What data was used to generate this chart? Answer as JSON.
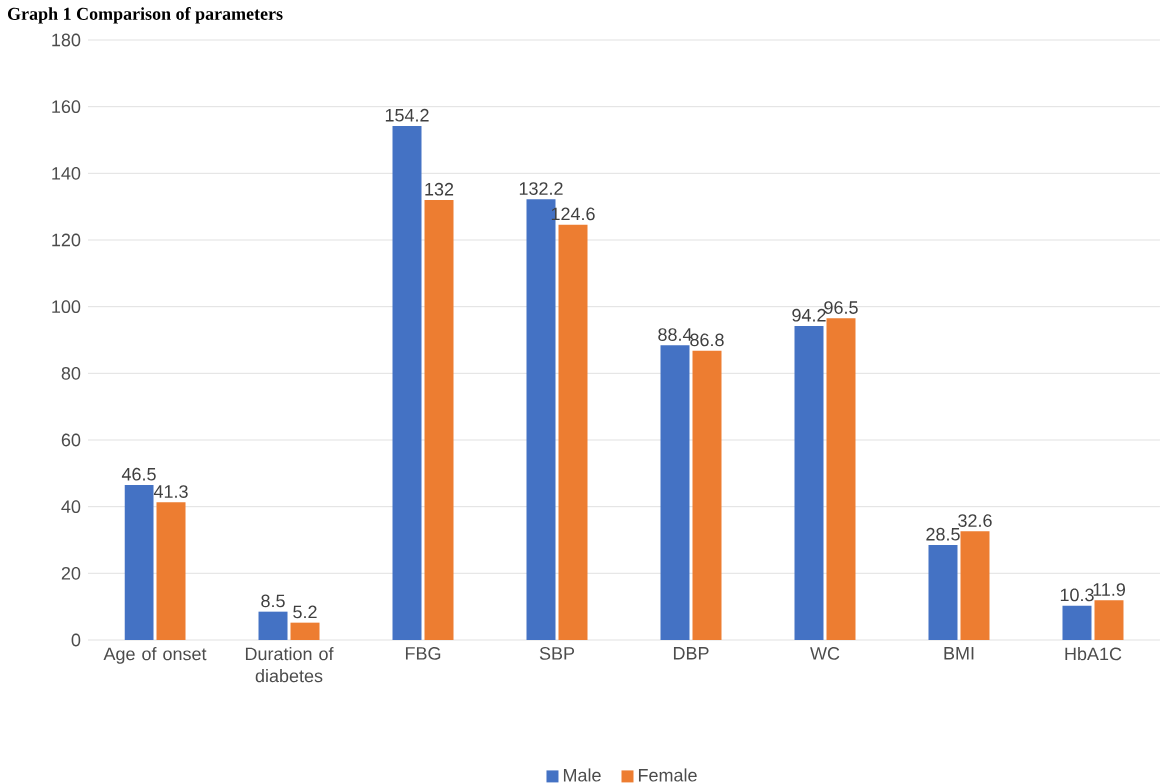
{
  "chart_data": {
    "type": "bar",
    "title": "Graph 1 Comparison of parameters",
    "categories": [
      "Age of onset",
      "Duration of diabetes",
      "FBG",
      "SBP",
      "DBP",
      "WC",
      "BMI",
      "HbA1C"
    ],
    "series": [
      {
        "name": "Male",
        "color": "#4472c4",
        "values": [
          46.5,
          8.5,
          154.2,
          132.2,
          88.4,
          94.2,
          28.5,
          10.3
        ]
      },
      {
        "name": "Female",
        "color": "#ed7d31",
        "values": [
          41.3,
          5.2,
          132,
          124.6,
          86.8,
          96.5,
          32.6,
          11.9
        ]
      }
    ],
    "ylim": [
      0,
      180
    ],
    "yticks": [
      0,
      20,
      40,
      60,
      80,
      100,
      120,
      140,
      160,
      180
    ],
    "grid": "y",
    "legend": "bottom",
    "data_labels": true
  }
}
